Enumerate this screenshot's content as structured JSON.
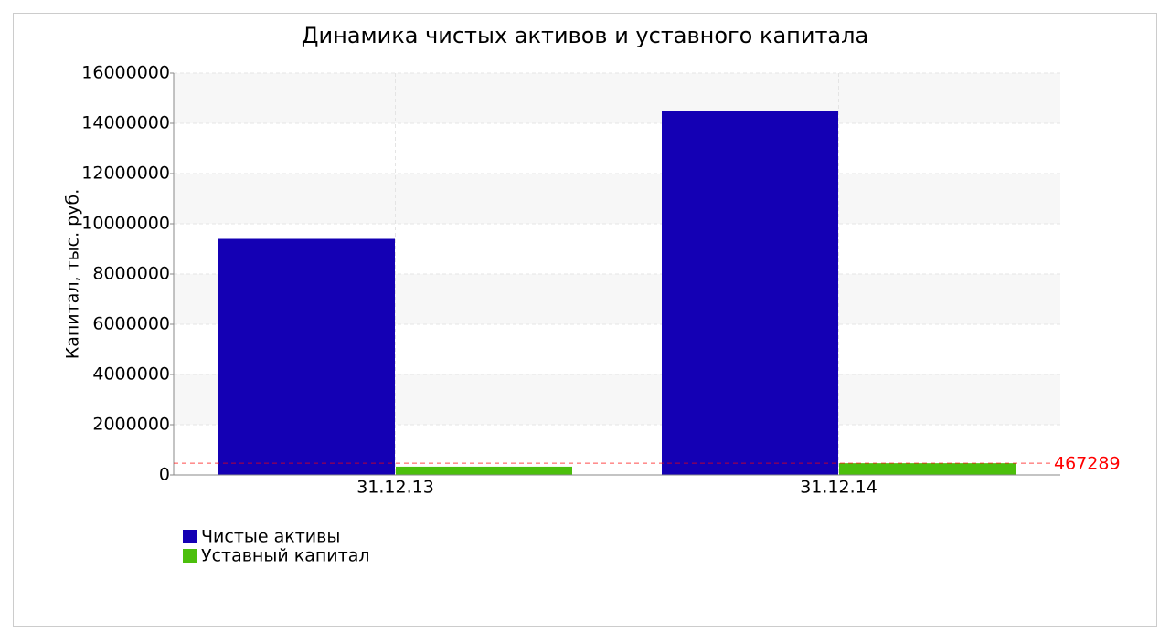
{
  "chart_data": {
    "type": "bar",
    "title": "Динамика чистых активов и уставного капитала",
    "y_label": "Капитал, тыс. руб.",
    "categories": [
      "31.12.13",
      "31.12.14"
    ],
    "series": [
      {
        "name": "Чистые активы",
        "color": "#1400b4",
        "values": [
          9400000,
          14500000
        ]
      },
      {
        "name": "Уставный капитал",
        "color": "#4cbf0c",
        "values": [
          330000,
          467289
        ]
      }
    ],
    "ylim": [
      0,
      16000000
    ],
    "yticks": [
      0,
      2000000,
      4000000,
      6000000,
      8000000,
      10000000,
      12000000,
      14000000,
      16000000
    ],
    "grid": true,
    "reference_line": {
      "value": 467289,
      "color": "#ff0000"
    }
  }
}
